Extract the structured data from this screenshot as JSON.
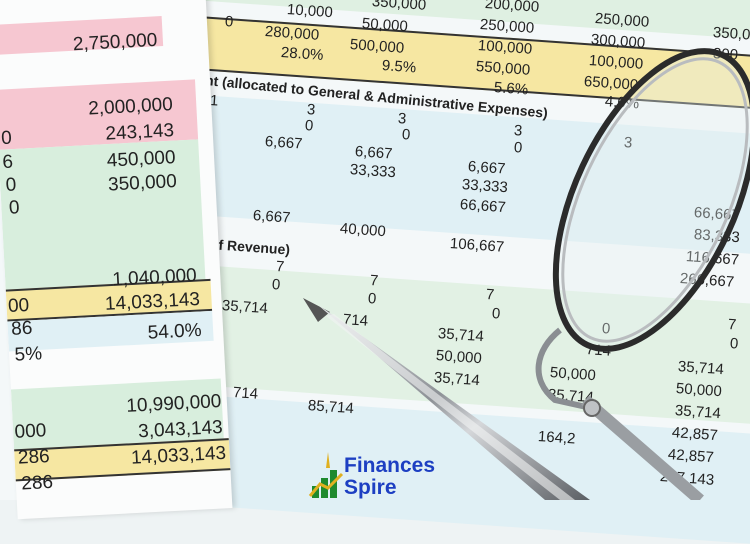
{
  "left_sheet": {
    "values": [
      "2,750,000",
      "2,000,000",
      "243,143",
      "450,000",
      "350,000",
      "1,040,000",
      "14,033,143",
      "54.0%",
      "10,990,000",
      "3,043,143",
      "14,033,143"
    ],
    "partial": [
      "0",
      "6",
      "0",
      "0",
      "00",
      "86",
      "5%",
      "000",
      "286",
      "286"
    ]
  },
  "right_sheet": {
    "heading_1": "ment (allocated to General & Administrative Expenses)",
    "heading_2": "of Revenue)",
    "cells": [
      "10,000",
      "350,000",
      "200,000",
      "250,000",
      "350,0",
      "0",
      "280,000",
      "50,000",
      "250,000",
      "300,000",
      "28.0%",
      "500,000",
      "100,000",
      "100,000",
      "300",
      "9.5%",
      "550,000",
      "650,000",
      "5.6%",
      "4.0%",
      "1",
      "3",
      "3",
      "0",
      "0",
      "3",
      "6,667",
      "6,667",
      "0",
      "3",
      "33,333",
      "6,667",
      "33,333",
      "66,667",
      "6,667",
      "40,000",
      "106,667",
      "66,667",
      "83,333",
      "116,667",
      "266,667",
      "7",
      "0",
      "7",
      "35,714",
      "0",
      "7",
      "714",
      "0",
      "35,714",
      "50,000",
      "35,714",
      "0",
      "714",
      "50,000",
      "35,714",
      "7",
      "0",
      "35,714",
      "50,000",
      "35,714",
      "42,857",
      "42,857",
      "207,143",
      "714",
      "85,714",
      "164,2"
    ]
  },
  "logo": {
    "line1": "Finances",
    "line2": "Spire",
    "text_color": "#1d3fc2",
    "bar_color": "#1f8a2e",
    "arrow_color": "#e0b020"
  },
  "colors": {
    "pink": "#f6c7d1",
    "green": "#d8eedd",
    "yellow": "#f6e7a2",
    "blue": "#e0f0f5"
  }
}
